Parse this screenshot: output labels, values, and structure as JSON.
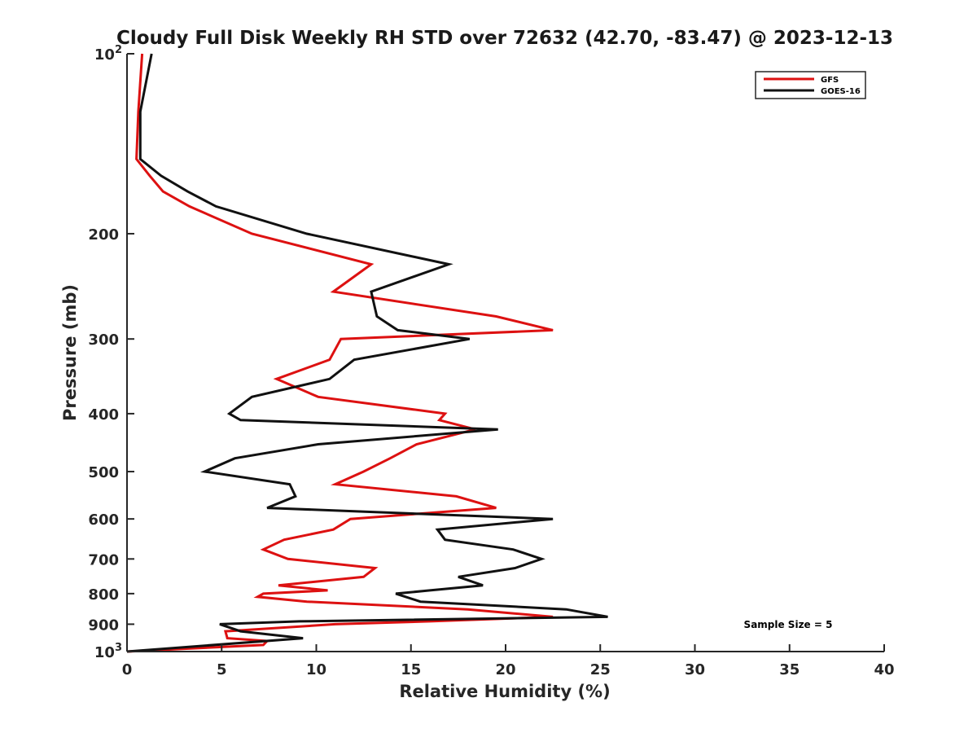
{
  "chart_data": {
    "type": "line",
    "title": "Cloudy Full Disk Weekly RH STD over 72632 (42.70, -83.47) @ 2023-12-13",
    "xlabel": "Relative Humidity (%)",
    "ylabel": "Pressure (mb)",
    "xlim": [
      0,
      40
    ],
    "ylim": [
      100,
      1000
    ],
    "y_scale": "log",
    "y_reversed": true,
    "grid": false,
    "legend_position": "top-right",
    "x_ticks": [
      0,
      5,
      10,
      15,
      20,
      25,
      30,
      35,
      40
    ],
    "y_ticks": [
      {
        "value": 100,
        "base": "10",
        "exp": "2"
      },
      {
        "value": 200,
        "label": "200"
      },
      {
        "value": 300,
        "label": "300"
      },
      {
        "value": 400,
        "label": "400"
      },
      {
        "value": 500,
        "label": "500"
      },
      {
        "value": 600,
        "label": "600"
      },
      {
        "value": 700,
        "label": "700"
      },
      {
        "value": 800,
        "label": "800"
      },
      {
        "value": 900,
        "label": "900"
      },
      {
        "value": 1000,
        "base": "10",
        "exp": "3"
      }
    ],
    "annotation": "Sample Size = 5",
    "series": [
      {
        "name": "GFS",
        "color": "#dd1111",
        "points": [
          [
            0.8,
            100
          ],
          [
            0.6,
            125
          ],
          [
            0.5,
            150
          ],
          [
            1.2,
            160
          ],
          [
            1.9,
            170
          ],
          [
            3.3,
            180
          ],
          [
            6.6,
            200
          ],
          [
            12.9,
            225
          ],
          [
            10.9,
            250
          ],
          [
            19.5,
            275
          ],
          [
            22.5,
            290
          ],
          [
            11.3,
            300
          ],
          [
            10.7,
            325
          ],
          [
            7.9,
            350
          ],
          [
            10.1,
            375
          ],
          [
            16.8,
            400
          ],
          [
            16.5,
            410
          ],
          [
            18.4,
            425
          ],
          [
            15.3,
            450
          ],
          [
            13.9,
            475
          ],
          [
            12.5,
            500
          ],
          [
            11.0,
            525
          ],
          [
            17.4,
            550
          ],
          [
            19.5,
            575
          ],
          [
            11.8,
            600
          ],
          [
            10.9,
            625
          ],
          [
            8.3,
            650
          ],
          [
            7.2,
            675
          ],
          [
            8.5,
            700
          ],
          [
            13.1,
            725
          ],
          [
            12.5,
            750
          ],
          [
            8.0,
            775
          ],
          [
            10.6,
            790
          ],
          [
            7.2,
            800
          ],
          [
            6.9,
            810
          ],
          [
            9.5,
            825
          ],
          [
            18.0,
            850
          ],
          [
            22.5,
            875
          ],
          [
            16.0,
            890
          ],
          [
            11.0,
            900
          ],
          [
            5.2,
            925
          ],
          [
            5.3,
            950
          ],
          [
            7.4,
            960
          ],
          [
            7.2,
            975
          ],
          [
            0,
            1000
          ]
        ]
      },
      {
        "name": "GOES-16",
        "color": "#111111",
        "points": [
          [
            1.3,
            100
          ],
          [
            0.7,
            125
          ],
          [
            0.7,
            150
          ],
          [
            1.8,
            160
          ],
          [
            3.2,
            170
          ],
          [
            4.7,
            180
          ],
          [
            9.5,
            200
          ],
          [
            17.0,
            225
          ],
          [
            12.9,
            250
          ],
          [
            13.2,
            275
          ],
          [
            14.3,
            290
          ],
          [
            18.1,
            300
          ],
          [
            12.0,
            325
          ],
          [
            10.7,
            350
          ],
          [
            6.6,
            375
          ],
          [
            5.4,
            400
          ],
          [
            6.0,
            410
          ],
          [
            19.6,
            425
          ],
          [
            10.1,
            450
          ],
          [
            5.7,
            475
          ],
          [
            4.1,
            500
          ],
          [
            8.6,
            525
          ],
          [
            8.9,
            550
          ],
          [
            7.4,
            575
          ],
          [
            22.5,
            600
          ],
          [
            16.4,
            625
          ],
          [
            16.8,
            650
          ],
          [
            20.4,
            675
          ],
          [
            21.9,
            700
          ],
          [
            20.5,
            725
          ],
          [
            17.5,
            750
          ],
          [
            18.8,
            775
          ],
          [
            16.0,
            790
          ],
          [
            14.2,
            800
          ],
          [
            15.5,
            825
          ],
          [
            23.2,
            850
          ],
          [
            25.4,
            875
          ],
          [
            9.1,
            890
          ],
          [
            4.9,
            900
          ],
          [
            6.0,
            925
          ],
          [
            9.3,
            950
          ],
          [
            0,
            1000
          ]
        ]
      }
    ]
  }
}
